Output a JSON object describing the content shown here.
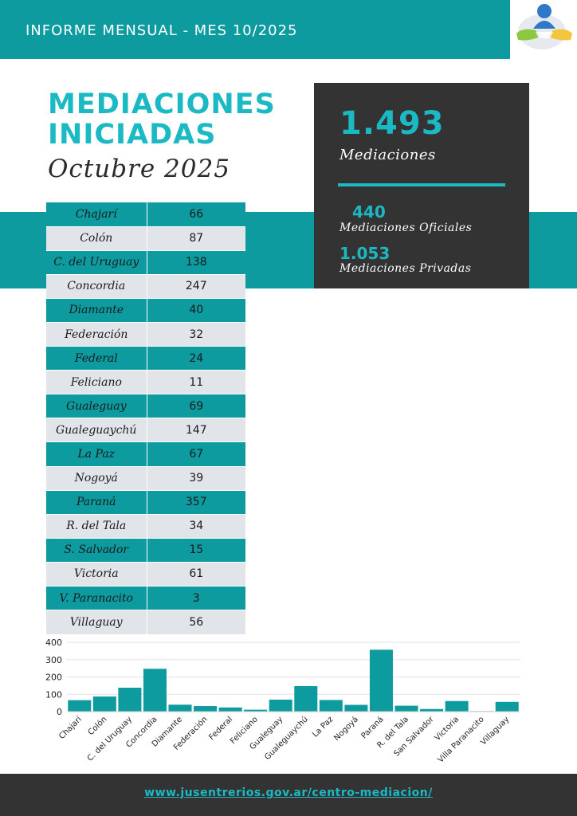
{
  "header": {
    "title": "INFORME MENSUAL - MES 10/2025",
    "logo_icon": "mediation-handshake-logo"
  },
  "hero": {
    "title_line1": "MEDIACIONES",
    "title_line2": "INICIADAS",
    "subtitle": "Octubre 2025"
  },
  "stats": {
    "total_value": "1.493",
    "total_label": "Mediaciones",
    "oficiales_value": "440",
    "oficiales_label": "Mediaciones Oficiales",
    "privadas_value": "1.053",
    "privadas_label": "Mediaciones Privadas"
  },
  "table": {
    "rows": [
      {
        "name": "Chajarí",
        "value": "66"
      },
      {
        "name": "Colón",
        "value": "87"
      },
      {
        "name": "C. del Uruguay",
        "value": "138"
      },
      {
        "name": "Concordia",
        "value": "247"
      },
      {
        "name": "Diamante",
        "value": "40"
      },
      {
        "name": "Federación",
        "value": "32"
      },
      {
        "name": "Federal",
        "value": "24"
      },
      {
        "name": "Feliciano",
        "value": "11"
      },
      {
        "name": "Gualeguay",
        "value": "69"
      },
      {
        "name": "Gualeguaychú",
        "value": "147"
      },
      {
        "name": "La Paz",
        "value": "67"
      },
      {
        "name": "Nogoyá",
        "value": "39"
      },
      {
        "name": "Paraná",
        "value": "357"
      },
      {
        "name": "R. del Tala",
        "value": "34"
      },
      {
        "name": "S. Salvador",
        "value": "15"
      },
      {
        "name": "Victoria",
        "value": "61"
      },
      {
        "name": "V. Paranacito",
        "value": "3"
      },
      {
        "name": "Villaguay",
        "value": "56"
      }
    ]
  },
  "chart_data": {
    "type": "bar",
    "categories": [
      "Chajarí",
      "Colón",
      "C. del Uruguay",
      "Concordia",
      "Diamante",
      "Federación",
      "Federal",
      "Feliciano",
      "Gualeguay",
      "Gualeguaychú",
      "La Paz",
      "Nogoyá",
      "Paraná",
      "R. del Tala",
      "San Salvador",
      "Victoria",
      "Villa Paranacito",
      "Villaguay"
    ],
    "values": [
      66,
      87,
      138,
      247,
      40,
      32,
      24,
      11,
      69,
      147,
      67,
      39,
      357,
      34,
      15,
      61,
      3,
      56
    ],
    "yticks": [
      "0",
      "100",
      "200",
      "300",
      "400"
    ],
    "ylim": [
      0,
      400
    ],
    "grid": true,
    "bar_color": "#0e9ba0"
  },
  "footer": {
    "link_text": "www.jusentrerios.gov.ar/centro-mediacion/"
  },
  "colors": {
    "accent": "#0e9ba0",
    "highlight": "#1bb9c4",
    "dark": "#333333",
    "row_light": "#e1e5ea"
  }
}
